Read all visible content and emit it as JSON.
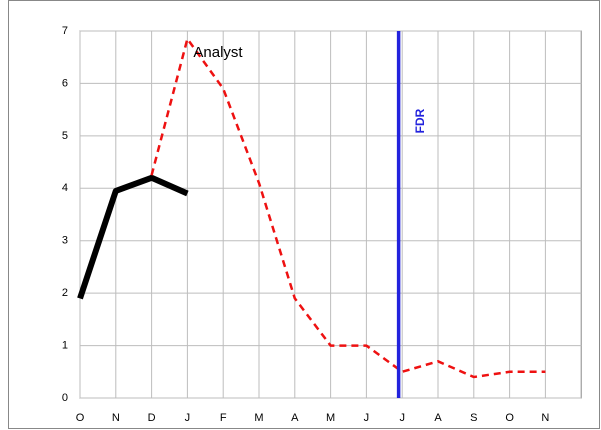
{
  "chart_data": {
    "type": "line",
    "categories": [
      "O",
      "N",
      "D",
      "J",
      "F",
      "M",
      "A",
      "M",
      "J",
      "J",
      "A",
      "S",
      "O",
      "N"
    ],
    "series": [
      {
        "color": "#000000",
        "width": 6,
        "dash": false,
        "values": [
          1.9,
          3.95,
          4.2,
          3.9,
          null,
          null,
          null,
          null,
          null,
          null,
          null,
          null,
          null,
          null
        ]
      },
      {
        "name": "Analyst",
        "color": "#ee1111",
        "width": 2.5,
        "dash": true,
        "values": [
          null,
          null,
          4.25,
          6.85,
          5.9,
          4.1,
          1.9,
          1.0,
          1.0,
          0.5,
          0.7,
          0.4,
          0.5,
          0.5
        ]
      }
    ],
    "ylim": [
      0,
      7
    ],
    "yticks": [
      0,
      1,
      2,
      3,
      4,
      5,
      6,
      7
    ],
    "grid": true,
    "vline": {
      "label": "FDR",
      "x": 8.9,
      "color": "#2222dd"
    }
  }
}
